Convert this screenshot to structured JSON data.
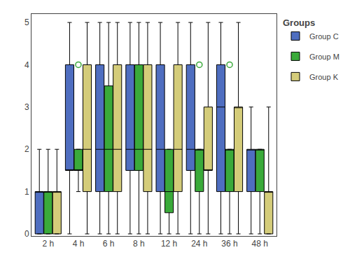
{
  "chart_data": {
    "type": "box",
    "categories": [
      "2 h",
      "4 h",
      "6 h",
      "8 h",
      "12 h",
      "24 h",
      "36 h",
      "48 h"
    ],
    "legend_title": "Groups",
    "legend": "upper right",
    "grid": false,
    "marker": "circle-open",
    "ylim": [
      -0.05,
      5.2
    ],
    "yticks": [
      0,
      1,
      2,
      3,
      4,
      5
    ],
    "series": [
      {
        "name": "Group C",
        "color": "#4f6ec0",
        "whislo": [
          0,
          0,
          0,
          0,
          0,
          0,
          0,
          0
        ],
        "q1": [
          0,
          1.5,
          1,
          1.5,
          1,
          1.5,
          1,
          1
        ],
        "median": [
          1,
          1.5,
          2,
          2,
          2,
          2,
          3,
          2
        ],
        "q3": [
          1,
          4,
          4,
          4,
          4,
          4,
          4,
          2
        ],
        "whishi": [
          2,
          5,
          5,
          5,
          5,
          5,
          5,
          3
        ],
        "fliers": [
          [],
          [],
          [],
          [],
          [],
          [],
          [],
          []
        ]
      },
      {
        "name": "Group M",
        "color": "#3aaa3a",
        "whislo": [
          0,
          1,
          0,
          0,
          0,
          0,
          0,
          0
        ],
        "q1": [
          0,
          1.5,
          1,
          1.5,
          0.5,
          1,
          1,
          1
        ],
        "median": [
          1,
          1.5,
          2,
          2,
          1,
          2,
          2,
          2
        ],
        "q3": [
          1,
          2,
          3.5,
          4,
          2,
          2,
          2,
          2
        ],
        "whishi": [
          2,
          2,
          5,
          5,
          2,
          2,
          2,
          2
        ],
        "fliers": [
          [],
          [
            4.0
          ],
          [],
          [],
          [],
          [
            4.0
          ],
          [
            4.0
          ],
          []
        ]
      },
      {
        "name": "Group K",
        "color": "#d4cc7a",
        "whislo": [
          0,
          0,
          0,
          0,
          0,
          0,
          0,
          0
        ],
        "q1": [
          0,
          1,
          1,
          1,
          1,
          1.5,
          1,
          0
        ],
        "median": [
          1,
          2,
          2,
          2,
          2,
          1.5,
          3,
          1
        ],
        "q3": [
          1,
          4,
          4,
          4,
          4,
          3,
          3,
          1
        ],
        "whishi": [
          2,
          5,
          5,
          5,
          5,
          5,
          5,
          3
        ],
        "fliers": [
          [],
          [],
          [],
          [],
          [],
          [],
          [],
          []
        ]
      }
    ]
  }
}
